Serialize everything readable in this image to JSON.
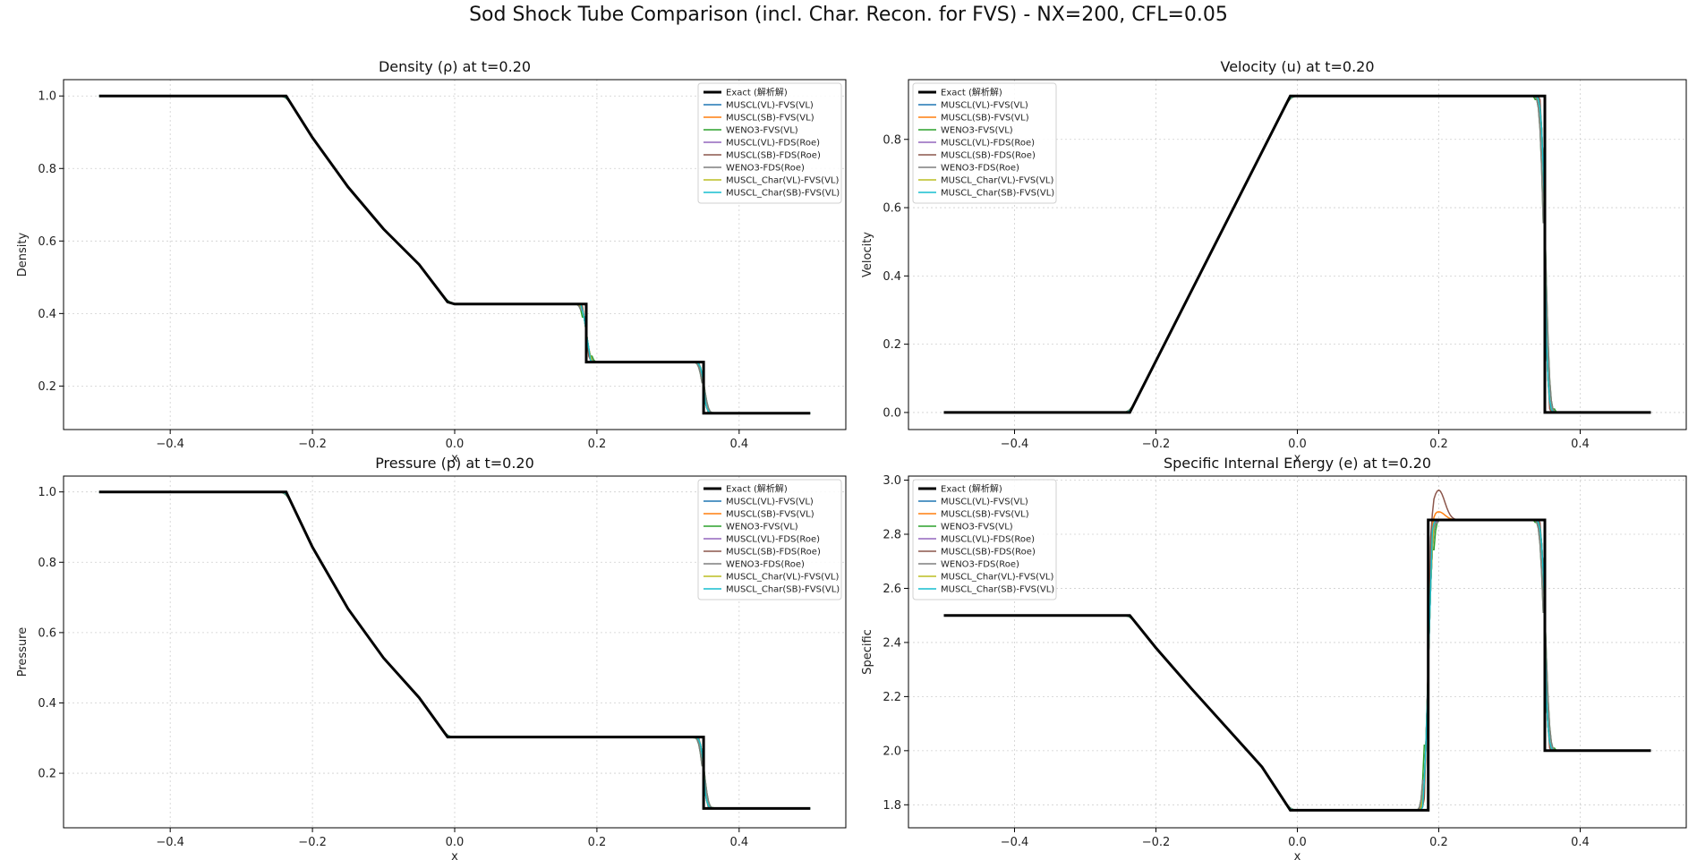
{
  "figure": {
    "suptitle": "Sod Shock Tube Comparison (incl. Char. Recon. for FVS) - NX=200, CFL=0.05"
  },
  "legend_entries": [
    {
      "name": "Exact (解析解)",
      "color": "#000000"
    },
    {
      "name": "MUSCL(VL)-FVS(VL)",
      "color": "#1f77b4"
    },
    {
      "name": "MUSCL(SB)-FVS(VL)",
      "color": "#ff7f0e"
    },
    {
      "name": "WENO3-FVS(VL)",
      "color": "#2ca02c"
    },
    {
      "name": "MUSCL(VL)-FDS(Roe)",
      "color": "#9467bd"
    },
    {
      "name": "MUSCL(SB)-FDS(Roe)",
      "color": "#8c564b"
    },
    {
      "name": "WENO3-FDS(Roe)",
      "color": "#7f7f7f"
    },
    {
      "name": "MUSCL_Char(VL)-FVS(VL)",
      "color": "#bcbd22"
    },
    {
      "name": "MUSCL_Char(SB)-FVS(VL)",
      "color": "#17becf"
    }
  ],
  "chart_data": [
    {
      "type": "line",
      "title": "Density (ρ) at t=0.20",
      "xlabel": "x",
      "ylabel": "Density",
      "xlim": [
        -0.55,
        0.55
      ],
      "ylim": [
        0.08,
        1.045
      ],
      "xticks": [
        -0.4,
        -0.2,
        0.0,
        0.2,
        0.4
      ],
      "xtick_labels": [
        "−0.4",
        "−0.2",
        "0.0",
        "0.2",
        "0.4"
      ],
      "yticks": [
        0.2,
        0.4,
        0.6,
        0.8,
        1.0
      ],
      "ytick_labels": [
        "0.2",
        "0.4",
        "0.6",
        "0.8",
        "1.0"
      ],
      "grid": true,
      "legend_position": "upper right",
      "exact": {
        "x": [
          -0.5,
          -0.237,
          -0.2,
          -0.15,
          -0.1,
          -0.05,
          -0.01,
          0.0,
          0.1,
          0.185,
          0.185,
          0.3,
          0.35,
          0.35,
          0.5
        ],
        "y": [
          1.0,
          1.0,
          0.885,
          0.749,
          0.633,
          0.535,
          0.432,
          0.426,
          0.426,
          0.426,
          0.266,
          0.266,
          0.266,
          0.125,
          0.125
        ]
      }
    },
    {
      "type": "line",
      "title": "Velocity (u) at t=0.20",
      "xlabel": "x",
      "ylabel": "Velocity",
      "xlim": [
        -0.55,
        0.55
      ],
      "ylim": [
        -0.05,
        0.975
      ],
      "xticks": [
        -0.4,
        -0.2,
        0.0,
        0.2,
        0.4
      ],
      "xtick_labels": [
        "−0.4",
        "−0.2",
        "0.0",
        "0.2",
        "0.4"
      ],
      "yticks": [
        0.0,
        0.2,
        0.4,
        0.6,
        0.8
      ],
      "ytick_labels": [
        "0.0",
        "0.2",
        "0.4",
        "0.6",
        "0.8"
      ],
      "grid": true,
      "legend_position": "upper left",
      "exact": {
        "x": [
          -0.5,
          -0.237,
          -0.01,
          0.0,
          0.2,
          0.35,
          0.35,
          0.5
        ],
        "y": [
          0.0,
          0.0,
          0.927,
          0.927,
          0.927,
          0.927,
          0.0,
          0.0
        ]
      }
    },
    {
      "type": "line",
      "title": "Pressure (p) at t=0.20",
      "xlabel": "x",
      "ylabel": "Pressure",
      "xlim": [
        -0.55,
        0.55
      ],
      "ylim": [
        0.045,
        1.045
      ],
      "xticks": [
        -0.4,
        -0.2,
        0.0,
        0.2,
        0.4
      ],
      "xtick_labels": [
        "−0.4",
        "−0.2",
        "0.0",
        "0.2",
        "0.4"
      ],
      "yticks": [
        0.2,
        0.4,
        0.6,
        0.8,
        1.0
      ],
      "ytick_labels": [
        "0.2",
        "0.4",
        "0.6",
        "0.8",
        "1.0"
      ],
      "grid": true,
      "legend_position": "upper right",
      "exact": {
        "x": [
          -0.5,
          -0.237,
          -0.2,
          -0.15,
          -0.1,
          -0.05,
          -0.01,
          0.0,
          0.2,
          0.35,
          0.35,
          0.5
        ],
        "y": [
          1.0,
          1.0,
          0.843,
          0.668,
          0.528,
          0.415,
          0.303,
          0.303,
          0.303,
          0.303,
          0.1,
          0.1
        ]
      }
    },
    {
      "type": "line",
      "title": "Specific Internal Energy (e) at t=0.20",
      "xlabel": "x",
      "ylabel": "Specific",
      "xlim": [
        -0.55,
        0.55
      ],
      "ylim": [
        1.715,
        3.015
      ],
      "xticks": [
        -0.4,
        -0.2,
        0.0,
        0.2,
        0.4
      ],
      "xtick_labels": [
        "−0.4",
        "−0.2",
        "0.0",
        "0.2",
        "0.4"
      ],
      "yticks": [
        1.8,
        2.0,
        2.2,
        2.4,
        2.6,
        2.8,
        3.0
      ],
      "ytick_labels": [
        "1.8",
        "2.0",
        "2.2",
        "2.4",
        "2.6",
        "2.8",
        "3.0"
      ],
      "grid": true,
      "legend_position": "upper left",
      "exact": {
        "x": [
          -0.5,
          -0.237,
          -0.2,
          -0.15,
          -0.1,
          -0.05,
          -0.01,
          0.0,
          0.1,
          0.185,
          0.185,
          0.3,
          0.35,
          0.35,
          0.5
        ],
        "y": [
          2.5,
          2.5,
          2.38,
          2.23,
          2.085,
          1.94,
          1.78,
          1.78,
          1.78,
          1.78,
          2.853,
          2.853,
          2.853,
          2.0,
          2.0
        ]
      }
    }
  ]
}
